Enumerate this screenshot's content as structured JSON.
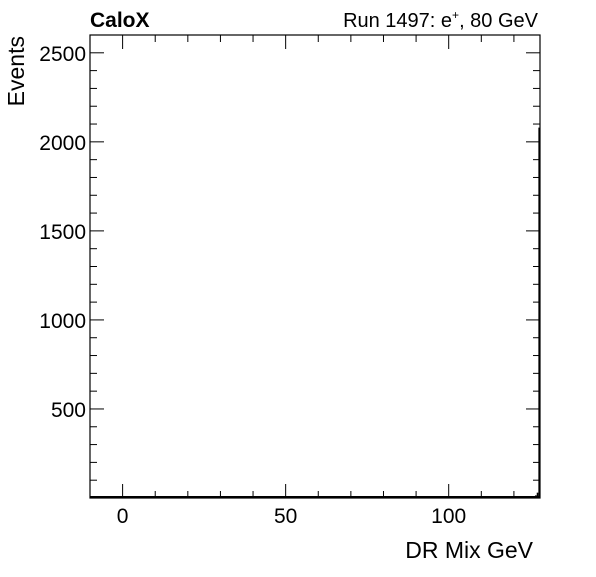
{
  "header": {
    "experiment": "CaloX",
    "run_info": "Run 1497: e",
    "run_info_superscript": "+",
    "run_info_suffix": ", 80 GeV"
  },
  "chart_data": {
    "type": "bar",
    "title": "",
    "xlabel": "DR Mix GeV",
    "ylabel": "Events",
    "xlim": [
      -10,
      128
    ],
    "ylim": [
      0,
      2600
    ],
    "x_ticks": [
      0,
      50,
      100
    ],
    "y_ticks": [
      500,
      1000,
      1500,
      2000,
      2500
    ],
    "x_tick_labels": [
      "0",
      "50",
      "100"
    ],
    "y_tick_labels": [
      "500",
      "1000",
      "1500",
      "2000",
      "2500"
    ],
    "grid": false,
    "legend": "none",
    "bin_width": 0.5,
    "series": [
      {
        "x": [
          -9.75,
          62.25,
          92.75,
          93.75,
          94.75,
          110.25,
          112.75,
          118.25,
          118.75,
          120.25,
          121.25,
          123.25,
          124.25,
          124.75,
          125.25,
          125.75,
          126.25,
          126.75,
          127.25,
          127.75
        ],
        "values": [
          8,
          4,
          4,
          6,
          3,
          3,
          4,
          4,
          3,
          3,
          6,
          3,
          4,
          3,
          6,
          6,
          10,
          15,
          30,
          2080
        ]
      }
    ]
  }
}
